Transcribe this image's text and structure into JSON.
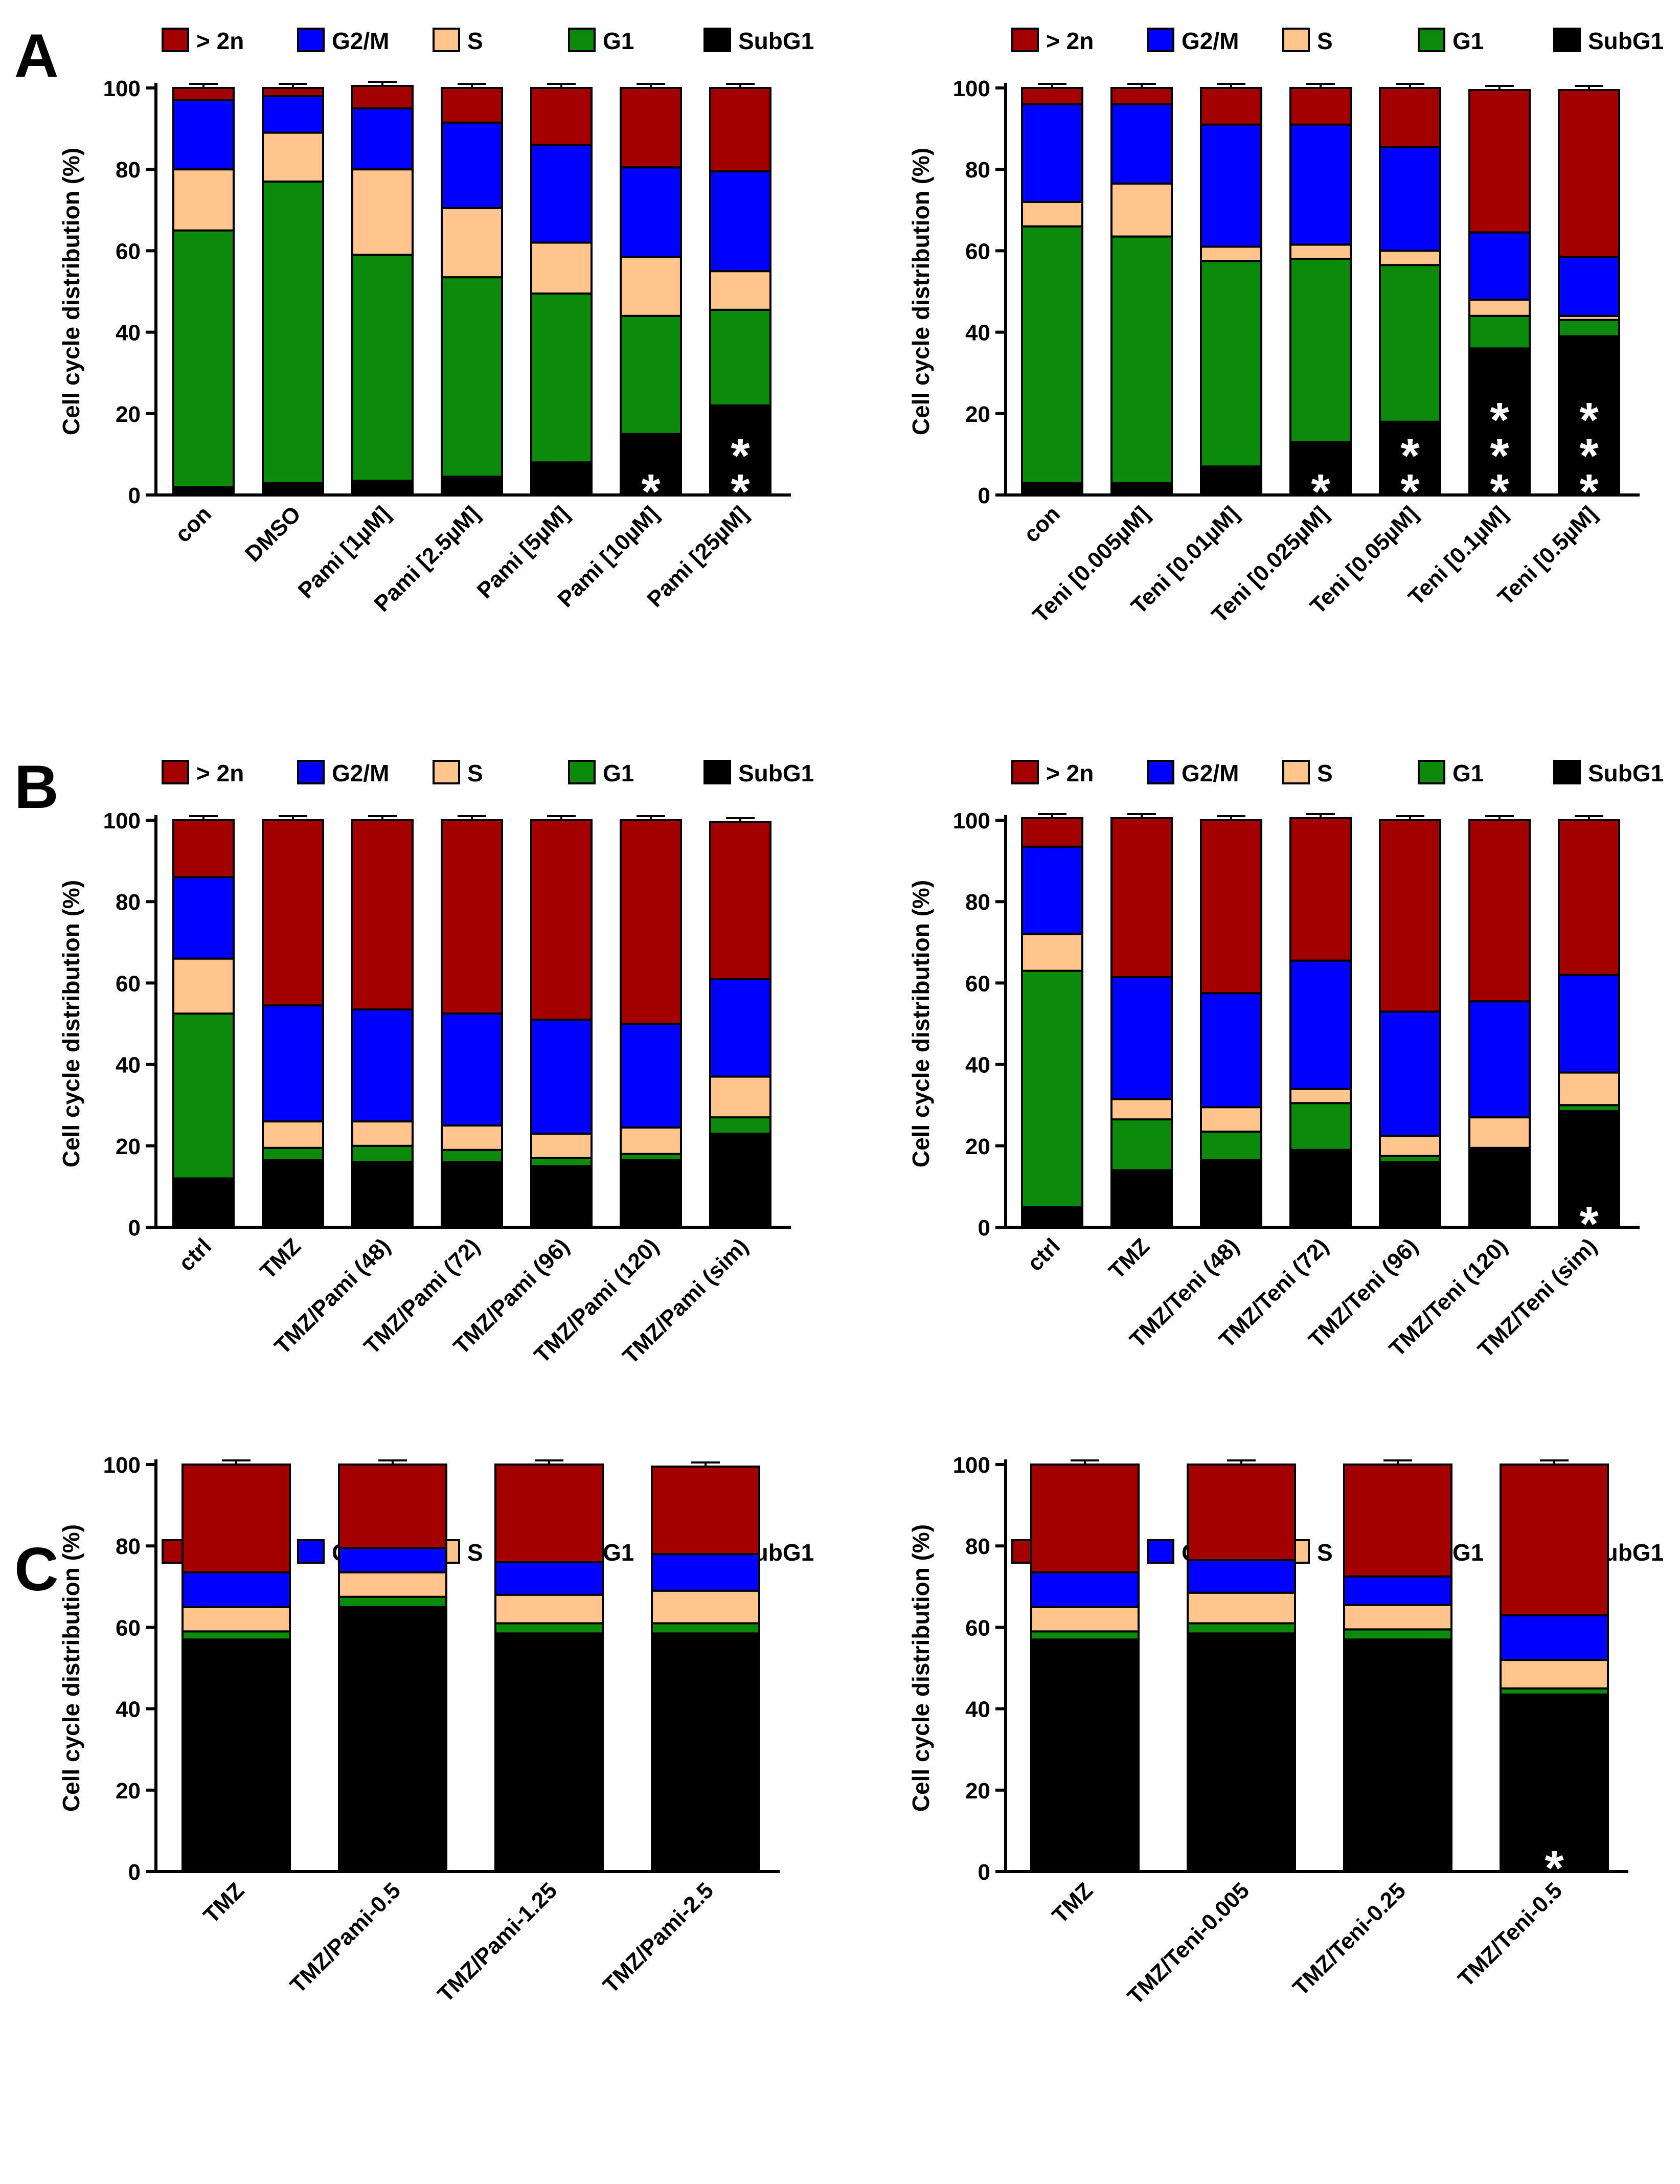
{
  "colors": {
    "gt2n": "#a50000",
    "g2m": "#0000ff",
    "s": "#ffc58c",
    "g1": "#0b8a0b",
    "subg1": "#000000"
  },
  "legend": [
    {
      "key": "gt2n",
      "label": "> 2n"
    },
    {
      "key": "g2m",
      "label": "G2/M"
    },
    {
      "key": "s",
      "label": "S"
    },
    {
      "key": "g1",
      "label": "G1"
    },
    {
      "key": "subg1",
      "label": "SubG1"
    }
  ],
  "panel_letters": [
    "A",
    "B",
    "C"
  ],
  "chart_data": [
    {
      "type": "bar",
      "stacked": true,
      "panel": "A",
      "ylabel": "Cell cycle distribution (%)",
      "ylim": [
        0,
        100
      ],
      "yticks": [
        0,
        20,
        40,
        60,
        80,
        100
      ],
      "categories": [
        "con",
        "DMSO",
        "Pami [1µM]",
        "Pami [2.5µM]",
        "Pami [5µM]",
        "Pami [10µM]",
        "Pami [25µM]"
      ],
      "series": [
        {
          "name": "SubG1",
          "key": "subg1",
          "values": [
            2,
            3,
            3.5,
            4.5,
            8,
            15,
            22
          ]
        },
        {
          "name": "G1",
          "key": "g1",
          "values": [
            63,
            74,
            55.5,
            49,
            41.5,
            29,
            23.5
          ]
        },
        {
          "name": "S",
          "key": "s",
          "values": [
            15,
            12,
            21,
            17,
            12.5,
            14.5,
            9.5
          ]
        },
        {
          "name": "G2/M",
          "key": "g2m",
          "values": [
            17,
            9,
            15,
            21,
            24,
            22,
            24.5
          ]
        },
        {
          "name": "> 2n",
          "key": "gt2n",
          "values": [
            3,
            2,
            5.5,
            8.5,
            14,
            19.5,
            20.5
          ]
        }
      ],
      "significance": [
        "",
        "",
        "",
        "",
        "",
        "*",
        "**"
      ]
    },
    {
      "type": "bar",
      "stacked": true,
      "panel": "A",
      "ylabel": "Cell cycle distribution (%)",
      "ylim": [
        0,
        100
      ],
      "yticks": [
        0,
        20,
        40,
        60,
        80,
        100
      ],
      "categories": [
        "con",
        "Teni [0.005µM]",
        "Teni [0.01µM]",
        "Teni [0.025µM]",
        "Teni [0.05µM]",
        "Teni [0.1µM]",
        "Teni [0.5µM]"
      ],
      "series": [
        {
          "name": "SubG1",
          "key": "subg1",
          "values": [
            3,
            3,
            7,
            13,
            18,
            36,
            39
          ]
        },
        {
          "name": "G1",
          "key": "g1",
          "values": [
            63,
            60.5,
            50.5,
            45,
            38.5,
            8,
            4
          ]
        },
        {
          "name": "S",
          "key": "s",
          "values": [
            6,
            13,
            3.5,
            3.5,
            3.5,
            4,
            1
          ]
        },
        {
          "name": "G2/M",
          "key": "g2m",
          "values": [
            24,
            19.5,
            30,
            29.5,
            25.5,
            16.5,
            14.5
          ]
        },
        {
          "name": "> 2n",
          "key": "gt2n",
          "values": [
            4,
            4,
            9,
            9,
            14.5,
            35,
            41
          ]
        }
      ],
      "significance": [
        "",
        "",
        "",
        "*",
        "**",
        "***",
        "***"
      ]
    },
    {
      "type": "bar",
      "stacked": true,
      "panel": "B",
      "ylabel": "Cell cycle distribution (%)",
      "ylim": [
        0,
        100
      ],
      "yticks": [
        0,
        20,
        40,
        60,
        80,
        100
      ],
      "categories": [
        "ctrl",
        "TMZ",
        "TMZ/Pami (48)",
        "TMZ/Pami (72)",
        "TMZ/Pami (96)",
        "TMZ/Pami (120)",
        "TMZ/Pami (sim)"
      ],
      "series": [
        {
          "name": "SubG1",
          "key": "subg1",
          "values": [
            12,
            16.5,
            16,
            16,
            15,
            16.5,
            23
          ]
        },
        {
          "name": "G1",
          "key": "g1",
          "values": [
            40.5,
            3,
            4,
            3,
            2,
            1.5,
            4
          ]
        },
        {
          "name": "S",
          "key": "s",
          "values": [
            13.5,
            6.5,
            6,
            6,
            6,
            6.5,
            10
          ]
        },
        {
          "name": "G2/M",
          "key": "g2m",
          "values": [
            20,
            28.5,
            27.5,
            27.5,
            28,
            25.5,
            24
          ]
        },
        {
          "name": "> 2n",
          "key": "gt2n",
          "values": [
            14,
            45.5,
            46.5,
            47.5,
            49,
            50,
            38.5
          ]
        }
      ],
      "significance": [
        "",
        "",
        "",
        "",
        "",
        "",
        ""
      ]
    },
    {
      "type": "bar",
      "stacked": true,
      "panel": "B",
      "ylabel": "Cell cycle distribution (%)",
      "ylim": [
        0,
        100
      ],
      "yticks": [
        0,
        20,
        40,
        60,
        80,
        100
      ],
      "categories": [
        "ctrl",
        "TMZ",
        "TMZ/Teni (48)",
        "TMZ/Teni (72)",
        "TMZ/Teni (96)",
        "TMZ/Teni (120)",
        "TMZ/Teni (sim)"
      ],
      "series": [
        {
          "name": "SubG1",
          "key": "subg1",
          "values": [
            5,
            14,
            16.5,
            19,
            16,
            19,
            28.5
          ]
        },
        {
          "name": "G1",
          "key": "g1",
          "values": [
            58,
            12.5,
            7,
            11.5,
            1.5,
            0.5,
            1.5
          ]
        },
        {
          "name": "S",
          "key": "s",
          "values": [
            9,
            5,
            6,
            3.5,
            5,
            7.5,
            8
          ]
        },
        {
          "name": "G2/M",
          "key": "g2m",
          "values": [
            21.5,
            30,
            28,
            31.5,
            30.5,
            28.5,
            24
          ]
        },
        {
          "name": "> 2n",
          "key": "gt2n",
          "values": [
            7,
            39,
            42.5,
            35,
            47,
            44.5,
            38
          ]
        }
      ],
      "significance": [
        "",
        "",
        "",
        "",
        "",
        "",
        "*"
      ]
    },
    {
      "type": "bar",
      "stacked": true,
      "panel": "C",
      "ylabel": "Cell cycle distribution (%)",
      "ylim": [
        0,
        100
      ],
      "yticks": [
        0,
        20,
        40,
        60,
        80,
        100
      ],
      "categories": [
        "TMZ",
        "TMZ/Pami-0.5",
        "TMZ/Pami-1.25",
        "TMZ/Pami-2.5"
      ],
      "series": [
        {
          "name": "SubG1",
          "key": "subg1",
          "values": [
            57,
            65,
            58.5,
            58.5
          ]
        },
        {
          "name": "G1",
          "key": "g1",
          "values": [
            2,
            2.5,
            2.5,
            2.5
          ]
        },
        {
          "name": "S",
          "key": "s",
          "values": [
            6,
            6,
            7,
            8
          ]
        },
        {
          "name": "G2/M",
          "key": "g2m",
          "values": [
            8.5,
            6,
            8,
            9
          ]
        },
        {
          "name": "> 2n",
          "key": "gt2n",
          "values": [
            26.5,
            20.5,
            24,
            21.5
          ]
        }
      ],
      "significance": [
        "",
        "",
        "",
        ""
      ]
    },
    {
      "type": "bar",
      "stacked": true,
      "panel": "C",
      "ylabel": "Cell cycle distribution (%)",
      "ylim": [
        0,
        100
      ],
      "yticks": [
        0,
        20,
        40,
        60,
        80,
        100
      ],
      "categories": [
        "TMZ",
        "TMZ/Teni-0.005",
        "TMZ/Teni-0.25",
        "TMZ/Teni-0.5"
      ],
      "series": [
        {
          "name": "SubG1",
          "key": "subg1",
          "values": [
            57,
            58.5,
            57,
            43.5
          ]
        },
        {
          "name": "G1",
          "key": "g1",
          "values": [
            2,
            2.5,
            2.5,
            1.5
          ]
        },
        {
          "name": "S",
          "key": "s",
          "values": [
            6,
            7.5,
            6,
            7
          ]
        },
        {
          "name": "G2/M",
          "key": "g2m",
          "values": [
            8.5,
            8,
            7,
            11
          ]
        },
        {
          "name": "> 2n",
          "key": "gt2n",
          "values": [
            26.5,
            23.5,
            27.5,
            37
          ]
        }
      ],
      "significance": [
        "",
        "",
        "",
        "*"
      ]
    }
  ]
}
